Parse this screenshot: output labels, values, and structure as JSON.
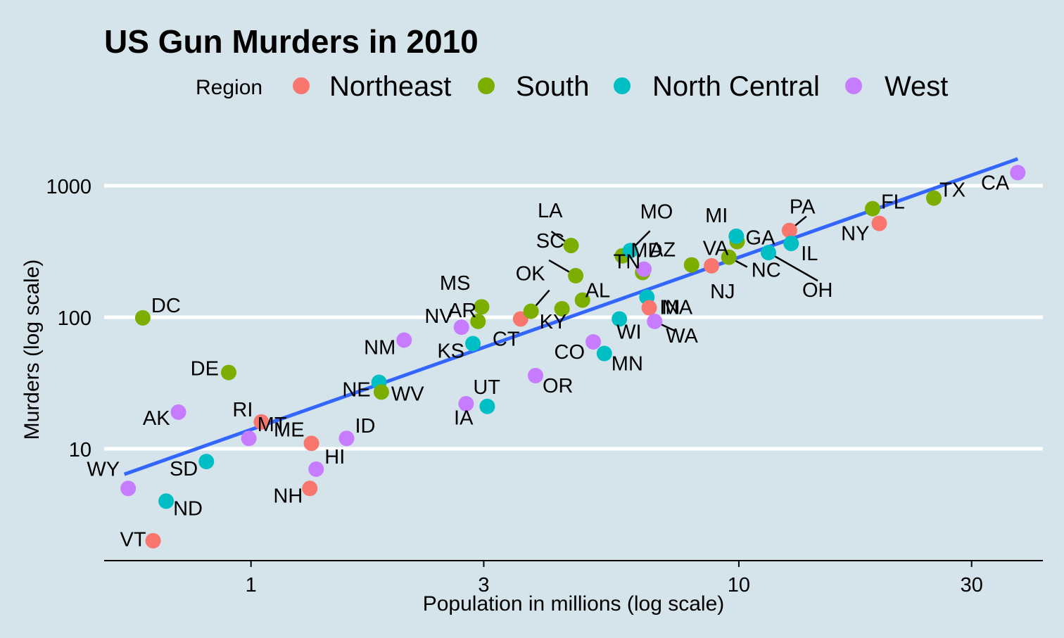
{
  "chart_data": {
    "type": "scatter",
    "title": "US Gun Murders in 2010",
    "xlabel": "Population in millions (log scale)",
    "ylabel": "Murders (log scale)",
    "x_scale": "log10",
    "y_scale": "log10",
    "xlim": [
      0.5,
      42
    ],
    "ylim": [
      1.7,
      3000
    ],
    "x_ticks": [
      1,
      3,
      10,
      30
    ],
    "y_ticks": [
      10,
      100,
      1000
    ],
    "grid": "horizontal major",
    "legend": {
      "title": "Region",
      "position": "top",
      "entries": [
        {
          "name": "Northeast",
          "color": "#f8766d"
        },
        {
          "name": "South",
          "color": "#7cae00"
        },
        {
          "name": "North Central",
          "color": "#00bfc4"
        },
        {
          "name": "West",
          "color": "#c77cff"
        }
      ]
    },
    "trend_line": {
      "color": "#3366ff",
      "x": [
        0.55,
        37.3
      ],
      "y": [
        6.4,
        1600
      ]
    },
    "points": [
      {
        "label": "DC",
        "region": "South",
        "pop": 0.6,
        "murders": 99
      },
      {
        "label": "DE",
        "region": "South",
        "pop": 0.9,
        "murders": 38
      },
      {
        "label": "AK",
        "region": "West",
        "pop": 0.71,
        "murders": 19
      },
      {
        "label": "RI",
        "region": "Northeast",
        "pop": 1.05,
        "murders": 16
      },
      {
        "label": "WY",
        "region": "West",
        "pop": 0.56,
        "murders": 5
      },
      {
        "label": "SD",
        "region": "North Central",
        "pop": 0.81,
        "murders": 8
      },
      {
        "label": "MT",
        "region": "West",
        "pop": 0.99,
        "murders": 12
      },
      {
        "label": "ND",
        "region": "North Central",
        "pop": 0.67,
        "murders": 4
      },
      {
        "label": "VT",
        "region": "Northeast",
        "pop": 0.63,
        "murders": 2
      },
      {
        "label": "ME",
        "region": "Northeast",
        "pop": 1.33,
        "murders": 11
      },
      {
        "label": "NH",
        "region": "Northeast",
        "pop": 1.32,
        "murders": 5
      },
      {
        "label": "HI",
        "region": "West",
        "pop": 1.36,
        "murders": 7
      },
      {
        "label": "ID",
        "region": "West",
        "pop": 1.57,
        "murders": 12
      },
      {
        "label": "NE",
        "region": "North Central",
        "pop": 1.83,
        "murders": 32
      },
      {
        "label": "WV",
        "region": "South",
        "pop": 1.85,
        "murders": 27
      },
      {
        "label": "NM",
        "region": "West",
        "pop": 2.06,
        "murders": 67
      },
      {
        "label": "NV",
        "region": "West",
        "pop": 2.7,
        "murders": 84
      },
      {
        "label": "KS",
        "region": "North Central",
        "pop": 2.85,
        "murders": 63
      },
      {
        "label": "UT",
        "region": "West",
        "pop": 2.76,
        "murders": 22
      },
      {
        "label": "IA",
        "region": "North Central",
        "pop": 3.05,
        "murders": 21
      },
      {
        "label": "MS",
        "region": "South",
        "pop": 2.97,
        "murders": 120
      },
      {
        "label": "AR",
        "region": "South",
        "pop": 2.92,
        "murders": 93
      },
      {
        "label": "CT",
        "region": "Northeast",
        "pop": 3.57,
        "murders": 97
      },
      {
        "label": "OK",
        "region": "South",
        "pop": 3.75,
        "murders": 111
      },
      {
        "label": "OR",
        "region": "West",
        "pop": 3.83,
        "murders": 36
      },
      {
        "label": "KY",
        "region": "South",
        "pop": 4.34,
        "murders": 116
      },
      {
        "label": "LA",
        "region": "South",
        "pop": 4.53,
        "murders": 351
      },
      {
        "label": "SC",
        "region": "South",
        "pop": 4.63,
        "murders": 207
      },
      {
        "label": "AL",
        "region": "South",
        "pop": 4.78,
        "murders": 135
      },
      {
        "label": "CO",
        "region": "West",
        "pop": 5.03,
        "murders": 65
      },
      {
        "label": "MN",
        "region": "North Central",
        "pop": 5.3,
        "murders": 53
      },
      {
        "label": "WI",
        "region": "North Central",
        "pop": 5.69,
        "murders": 97
      },
      {
        "label": "MD",
        "region": "South",
        "pop": 5.77,
        "murders": 293
      },
      {
        "label": "MO",
        "region": "North Central",
        "pop": 5.99,
        "murders": 321
      },
      {
        "label": "TN",
        "region": "South",
        "pop": 6.35,
        "murders": 219
      },
      {
        "label": "AZ",
        "region": "West",
        "pop": 6.39,
        "murders": 232
      },
      {
        "label": "IN",
        "region": "North Central",
        "pop": 6.48,
        "murders": 142
      },
      {
        "label": "MA",
        "region": "Northeast",
        "pop": 6.55,
        "murders": 118
      },
      {
        "label": "WA",
        "region": "West",
        "pop": 6.72,
        "murders": 93
      },
      {
        "label": "VA",
        "region": "South",
        "pop": 8.0,
        "murders": 250
      },
      {
        "label": "NJ",
        "region": "Northeast",
        "pop": 8.79,
        "murders": 246
      },
      {
        "label": "NC",
        "region": "South",
        "pop": 9.54,
        "murders": 286
      },
      {
        "label": "GA",
        "region": "South",
        "pop": 9.92,
        "murders": 376
      },
      {
        "label": "MI",
        "region": "North Central",
        "pop": 9.88,
        "murders": 413
      },
      {
        "label": "OH",
        "region": "North Central",
        "pop": 11.5,
        "murders": 310
      },
      {
        "label": "PA",
        "region": "Northeast",
        "pop": 12.7,
        "murders": 457
      },
      {
        "label": "IL",
        "region": "North Central",
        "pop": 12.8,
        "murders": 364
      },
      {
        "label": "NY",
        "region": "Northeast",
        "pop": 19.4,
        "murders": 517
      },
      {
        "label": "FL",
        "region": "South",
        "pop": 18.8,
        "murders": 669
      },
      {
        "label": "TX",
        "region": "South",
        "pop": 25.1,
        "murders": 805
      },
      {
        "label": "CA",
        "region": "West",
        "pop": 37.3,
        "murders": 1257
      }
    ]
  }
}
